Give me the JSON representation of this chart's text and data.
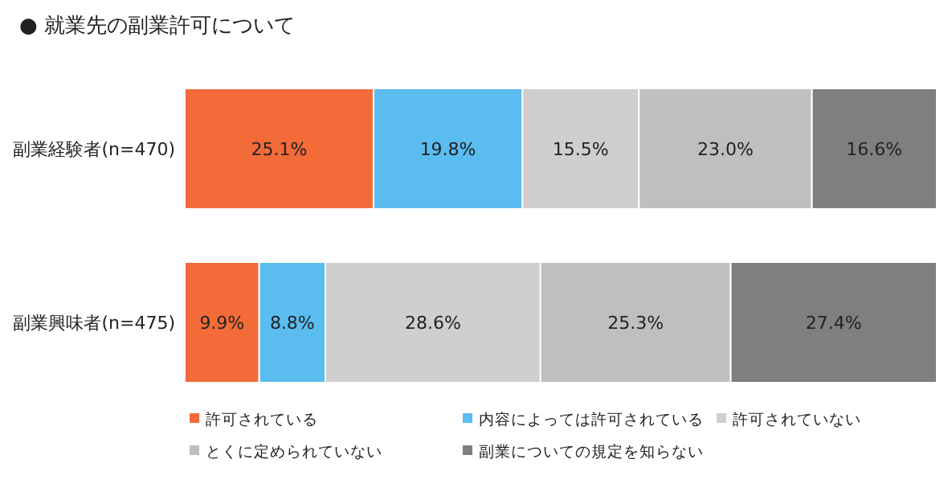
{
  "chart_data": {
    "type": "bar",
    "title": "● 就業先の副業許可について",
    "orientation": "horizontal",
    "stacked": true,
    "legend": "bottom",
    "categories": [
      "副業経験者(n=470)",
      "副業興味者(n=475)"
    ],
    "series": [
      {
        "name": "許可されている",
        "color": "#f26b38",
        "values": [
          25.1,
          9.9
        ],
        "value_labels": [
          "25.1%",
          "9.9%"
        ]
      },
      {
        "name": "内容によっては許可されている",
        "color": "#5bbcf0",
        "values": [
          19.8,
          8.8
        ],
        "value_labels": [
          "19.8%",
          "8.8%"
        ]
      },
      {
        "name": "許可されていない",
        "color": "#d0cece",
        "values": [
          15.5,
          28.6
        ],
        "value_labels": [
          "15.5%",
          "28.6%"
        ]
      },
      {
        "name": "とくに定められていない",
        "color": "#bfbfbf",
        "values": [
          23.0,
          25.3
        ],
        "value_labels": [
          "23.0%",
          "25.3%"
        ]
      },
      {
        "name": "副業についての規定を知らない",
        "color": "#7f7f7f",
        "values": [
          16.6,
          27.4
        ],
        "value_labels": [
          "16.6%",
          "27.4%"
        ]
      }
    ]
  }
}
